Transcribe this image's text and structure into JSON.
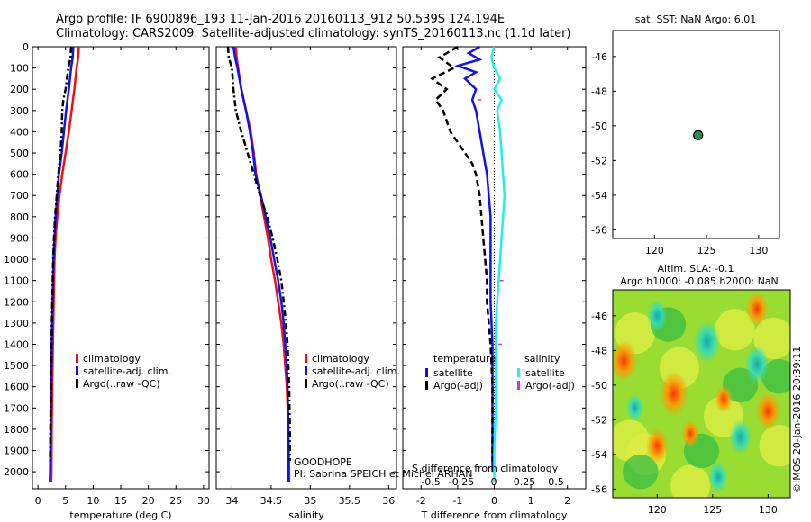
{
  "header": {
    "line1": "Argo profile: IF 6900896_193 11-Jan-2016 20160113_912 50.539S 124.194E",
    "line2": "Climatology: CARS2009. Satellite-adjusted climatology: synTS_20160113.nc (1.1d later)"
  },
  "watermark": "©IMOS 20-Jan-2016 20:39:11",
  "colors": {
    "climatology": "#ee1111",
    "satellite": "#1111ee",
    "argo": "#000000",
    "satellite_sal": "#22eeee",
    "argo_sal": "#ee22ee",
    "dot": "#2e8b57"
  },
  "chart_data": [
    {
      "id": "temperature",
      "type": "line",
      "xlabel": "temperature (deg C)",
      "ylabel": "",
      "xlim": [
        -1,
        31
      ],
      "ylim": [
        2080,
        0
      ],
      "xticks": [
        0,
        5,
        10,
        15,
        20,
        25,
        30
      ],
      "yticks": [
        0,
        100,
        200,
        300,
        400,
        500,
        600,
        700,
        800,
        900,
        1000,
        1100,
        1200,
        1300,
        1400,
        1500,
        1600,
        1700,
        1800,
        1900,
        2000
      ],
      "legend": [
        "climatology",
        "satellite-adj. clim.",
        "Argo(..raw -QC)"
      ],
      "series": [
        {
          "name": "climatology",
          "style": "solid",
          "color": "#ee1111",
          "points": [
            [
              7.4,
              0
            ],
            [
              7.3,
              50
            ],
            [
              7.0,
              100
            ],
            [
              6.6,
              200
            ],
            [
              6.1,
              300
            ],
            [
              5.6,
              400
            ],
            [
              5.0,
              500
            ],
            [
              4.4,
              600
            ],
            [
              3.9,
              700
            ],
            [
              3.5,
              800
            ],
            [
              3.2,
              900
            ],
            [
              3.0,
              1000
            ],
            [
              2.85,
              1200
            ],
            [
              2.7,
              1400
            ],
            [
              2.6,
              1600
            ],
            [
              2.5,
              1800
            ],
            [
              2.45,
              2000
            ],
            [
              2.4,
              2050
            ]
          ]
        },
        {
          "name": "satellite-adj. clim.",
          "style": "solid",
          "color": "#1111ee",
          "points": [
            [
              6.4,
              0
            ],
            [
              6.3,
              50
            ],
            [
              6.0,
              100
            ],
            [
              5.6,
              200
            ],
            [
              5.1,
              300
            ],
            [
              4.7,
              400
            ],
            [
              4.3,
              500
            ],
            [
              3.8,
              600
            ],
            [
              3.5,
              700
            ],
            [
              3.2,
              800
            ],
            [
              3.0,
              900
            ],
            [
              2.8,
              1000
            ],
            [
              2.65,
              1200
            ],
            [
              2.5,
              1400
            ],
            [
              2.4,
              1600
            ],
            [
              2.3,
              1800
            ],
            [
              2.2,
              2000
            ],
            [
              2.15,
              2050
            ]
          ]
        },
        {
          "name": "Argo(..raw -QC)",
          "style": "dashdot",
          "color": "#000000",
          "points": [
            [
              6.0,
              0
            ],
            [
              5.9,
              50
            ],
            [
              5.5,
              100
            ],
            [
              5.0,
              200
            ],
            [
              4.6,
              250
            ],
            [
              4.4,
              300
            ],
            [
              4.3,
              400
            ],
            [
              4.1,
              500
            ],
            [
              3.7,
              600
            ],
            [
              3.4,
              700
            ],
            [
              3.1,
              800
            ],
            [
              2.9,
              900
            ],
            [
              2.75,
              1000
            ],
            [
              2.6,
              1200
            ],
            [
              2.45,
              1400
            ],
            [
              2.35,
              1600
            ],
            [
              2.25,
              1800
            ],
            [
              2.2,
              1950
            ]
          ]
        }
      ]
    },
    {
      "id": "salinity",
      "type": "line",
      "xlabel": "salinity",
      "ylabel": "",
      "xlim": [
        33.8,
        36.1
      ],
      "ylim": [
        2080,
        0
      ],
      "xticks": [
        34,
        34.5,
        35,
        35.5,
        36
      ],
      "legend": [
        "climatology",
        "satellite-adj. clim.",
        "Argo(..raw -QC)"
      ],
      "annotations": [
        "GOODHOPE",
        "PI: Sabrina SPEICH et Michel ARHAN"
      ],
      "series": [
        {
          "name": "climatology",
          "style": "solid",
          "color": "#ee1111",
          "points": [
            [
              34.05,
              0
            ],
            [
              34.06,
              50
            ],
            [
              34.08,
              100
            ],
            [
              34.12,
              200
            ],
            [
              34.18,
              300
            ],
            [
              34.24,
              400
            ],
            [
              34.28,
              500
            ],
            [
              34.31,
              600
            ],
            [
              34.36,
              700
            ],
            [
              34.41,
              800
            ],
            [
              34.46,
              900
            ],
            [
              34.5,
              1000
            ],
            [
              34.55,
              1100
            ],
            [
              34.59,
              1200
            ],
            [
              34.63,
              1300
            ],
            [
              34.66,
              1400
            ],
            [
              34.68,
              1500
            ],
            [
              34.7,
              1600
            ],
            [
              34.72,
              1800
            ],
            [
              34.73,
              2000
            ],
            [
              34.73,
              2050
            ]
          ]
        },
        {
          "name": "satellite-adj. clim.",
          "style": "solid",
          "color": "#1111ee",
          "points": [
            [
              34.02,
              0
            ],
            [
              34.04,
              50
            ],
            [
              34.07,
              100
            ],
            [
              34.12,
              200
            ],
            [
              34.18,
              300
            ],
            [
              34.23,
              400
            ],
            [
              34.27,
              500
            ],
            [
              34.3,
              600
            ],
            [
              34.37,
              700
            ],
            [
              34.43,
              800
            ],
            [
              34.49,
              900
            ],
            [
              34.54,
              1000
            ],
            [
              34.59,
              1100
            ],
            [
              34.63,
              1200
            ],
            [
              34.66,
              1300
            ],
            [
              34.68,
              1400
            ],
            [
              34.7,
              1500
            ],
            [
              34.71,
              1600
            ],
            [
              34.72,
              1800
            ],
            [
              34.72,
              2000
            ],
            [
              34.72,
              2050
            ]
          ]
        },
        {
          "name": "Argo(..raw -QC)",
          "style": "dashdot",
          "color": "#000000",
          "points": [
            [
              33.95,
              0
            ],
            [
              33.96,
              50
            ],
            [
              34.0,
              100
            ],
            [
              34.02,
              200
            ],
            [
              34.05,
              300
            ],
            [
              34.12,
              400
            ],
            [
              34.2,
              500
            ],
            [
              34.28,
              600
            ],
            [
              34.36,
              700
            ],
            [
              34.45,
              800
            ],
            [
              34.52,
              900
            ],
            [
              34.58,
              1000
            ],
            [
              34.63,
              1100
            ],
            [
              34.66,
              1200
            ],
            [
              34.69,
              1300
            ],
            [
              34.71,
              1400
            ],
            [
              34.72,
              1500
            ],
            [
              34.73,
              1600
            ],
            [
              34.74,
              1800
            ],
            [
              34.74,
              1950
            ]
          ]
        }
      ]
    },
    {
      "id": "difference",
      "type": "line",
      "xlabel": "T difference from climatology",
      "xlabel2": "S difference from climatology",
      "xlim": [
        -2.5,
        2.5
      ],
      "ylim": [
        2080,
        0
      ],
      "xticks": [
        -2,
        -1,
        0,
        1,
        2
      ],
      "xticks2": [
        "-0.5",
        "-0.25",
        "0",
        "0.25",
        "0.5"
      ],
      "legend_titles": [
        "temperature",
        "salinity"
      ],
      "legend": [
        "satellite",
        "Argo(-adj)",
        "satellite",
        "Argo(-adj)"
      ],
      "series": [
        {
          "name": "satellite",
          "group": "temperature",
          "style": "solid",
          "color": "#1111ee",
          "points": [
            [
              -0.4,
              0
            ],
            [
              -0.7,
              30
            ],
            [
              -0.4,
              60
            ],
            [
              -1.0,
              90
            ],
            [
              -0.5,
              120
            ],
            [
              -0.8,
              150
            ],
            [
              -0.5,
              200
            ],
            [
              -0.6,
              250
            ],
            [
              -0.5,
              300
            ],
            [
              -0.4,
              400
            ],
            [
              -0.3,
              500
            ],
            [
              -0.2,
              600
            ],
            [
              -0.15,
              700
            ],
            [
              -0.1,
              800
            ],
            [
              -0.1,
              1000
            ],
            [
              -0.1,
              1200
            ],
            [
              -0.05,
              1400
            ],
            [
              -0.05,
              1600
            ],
            [
              -0.05,
              1800
            ],
            [
              -0.05,
              2000
            ]
          ]
        },
        {
          "name": "Argo(-adj)",
          "group": "temperature",
          "style": "dashed",
          "color": "#000000",
          "points": [
            [
              -1.0,
              0
            ],
            [
              -1.5,
              50
            ],
            [
              -1.1,
              100
            ],
            [
              -1.7,
              150
            ],
            [
              -1.3,
              200
            ],
            [
              -1.6,
              250
            ],
            [
              -1.4,
              300
            ],
            [
              -1.2,
              400
            ],
            [
              -1.0,
              450
            ],
            [
              -0.6,
              550
            ],
            [
              -0.5,
              600
            ],
            [
              -0.4,
              700
            ],
            [
              -0.35,
              800
            ],
            [
              -0.3,
              900
            ],
            [
              -0.25,
              1000
            ],
            [
              -0.2,
              1100
            ],
            [
              -0.2,
              1200
            ],
            [
              -0.1,
              1400
            ],
            [
              -0.05,
              1600
            ],
            [
              -0.05,
              1800
            ],
            [
              -0.05,
              1950
            ]
          ]
        },
        {
          "name": "satellite",
          "group": "salinity",
          "style": "solid",
          "color": "#22eeee",
          "points": [
            [
              0.0,
              0
            ],
            [
              -0.02,
              50
            ],
            [
              0.0,
              100
            ],
            [
              0.04,
              150
            ],
            [
              0.0,
              200
            ],
            [
              0.05,
              250
            ],
            [
              0.02,
              300
            ],
            [
              0.04,
              400
            ],
            [
              0.05,
              500
            ],
            [
              0.06,
              600
            ],
            [
              0.07,
              700
            ],
            [
              0.06,
              800
            ],
            [
              0.05,
              900
            ],
            [
              0.04,
              1000
            ],
            [
              0.03,
              1100
            ],
            [
              0.02,
              1200
            ],
            [
              0.01,
              1300
            ],
            [
              0.01,
              1500
            ],
            [
              0.01,
              1700
            ],
            [
              0.0,
              1900
            ],
            [
              0.0,
              2050
            ]
          ]
        }
      ],
      "markers": {
        "name": "Argo(-adj)",
        "group": "salinity",
        "color": "#ee22ee",
        "depths": [
          1100,
          1400
        ],
        "values": [
          0.05,
          0.04
        ]
      }
    },
    {
      "id": "position-map",
      "type": "scatter",
      "title": "sat. SST: NaN Argo: 6.01",
      "xlim": [
        116,
        132
      ],
      "ylim": [
        -56.5,
        -44.5
      ],
      "xticks": [
        120,
        125,
        130
      ],
      "yticks": [
        -46,
        -48,
        -50,
        -52,
        -54,
        -56
      ],
      "points": [
        {
          "lon": 124.194,
          "lat": -50.539
        }
      ]
    },
    {
      "id": "sla-map",
      "type": "heatmap",
      "title": "Altim. SLA: -0.1",
      "subtitle": "Argo h1000: -0.085 h2000: NaN",
      "xlim": [
        116,
        132
      ],
      "ylim": [
        -56.5,
        -44.5
      ],
      "xticks": [
        120,
        125,
        130
      ],
      "yticks": [
        -46,
        -48,
        -50,
        -52,
        -54,
        -56
      ],
      "blobs": [
        {
          "lon": 117.0,
          "lat": -48.6,
          "r": 1.2,
          "level": "high"
        },
        {
          "lon": 121.5,
          "lat": -50.5,
          "r": 1.3,
          "level": "high"
        },
        {
          "lon": 123.0,
          "lat": -52.8,
          "r": 0.8,
          "level": "high"
        },
        {
          "lon": 126.0,
          "lat": -50.8,
          "r": 0.8,
          "level": "high"
        },
        {
          "lon": 130.0,
          "lat": -51.5,
          "r": 1.1,
          "level": "high"
        },
        {
          "lon": 129.0,
          "lat": -45.6,
          "r": 1.0,
          "level": "high"
        },
        {
          "lon": 120.0,
          "lat": -53.5,
          "r": 1.0,
          "level": "high"
        },
        {
          "lon": 124.5,
          "lat": -47.5,
          "r": 1.2,
          "level": "low"
        },
        {
          "lon": 129.0,
          "lat": -48.8,
          "r": 1.1,
          "level": "low"
        },
        {
          "lon": 120.0,
          "lat": -46.0,
          "r": 0.9,
          "level": "low"
        },
        {
          "lon": 127.5,
          "lat": -53.0,
          "r": 1.0,
          "level": "low"
        },
        {
          "lon": 118.0,
          "lat": -51.3,
          "r": 0.8,
          "level": "low"
        },
        {
          "lon": 125.5,
          "lat": -55.3,
          "r": 0.9,
          "level": "low"
        }
      ]
    }
  ]
}
